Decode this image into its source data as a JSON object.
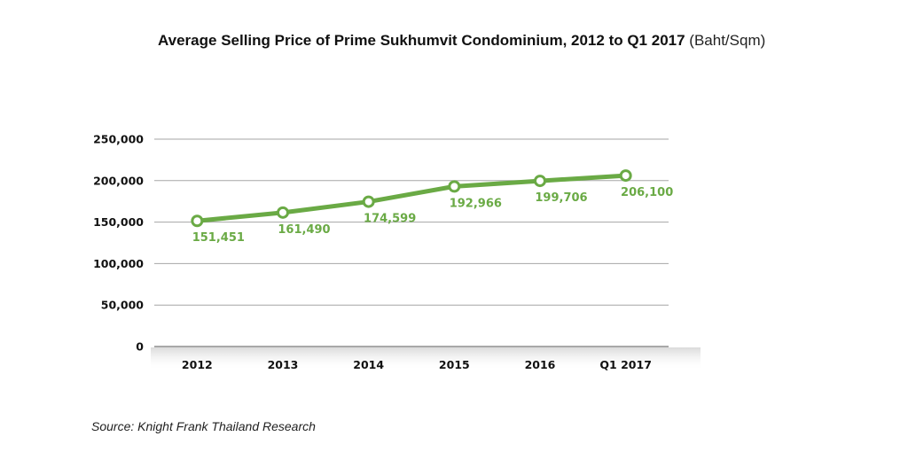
{
  "chart_data": {
    "type": "line",
    "title": "Average Selling Price of Prime Sukhumvit Condominium, 2012 to Q1 2017",
    "unit": "(Baht/Sqm)",
    "categories": [
      "2012",
      "2013",
      "2014",
      "2015",
      "2016",
      "Q1 2017"
    ],
    "series": [
      {
        "values": [
          151451,
          161490,
          174599,
          192966,
          199706,
          206100
        ],
        "labels": [
          "151,451",
          "161,490",
          "174,599",
          "192,966",
          "199,706",
          "206,100"
        ]
      }
    ],
    "ylim": [
      0,
      250000
    ],
    "yticks": [
      "0",
      "50,000",
      "100,000",
      "150,000",
      "200,000",
      "250,000"
    ],
    "grid": true,
    "line_color": "#6aaa45",
    "label_color": "#6aaa45"
  },
  "source": "Source: Knight Frank Thailand Research"
}
